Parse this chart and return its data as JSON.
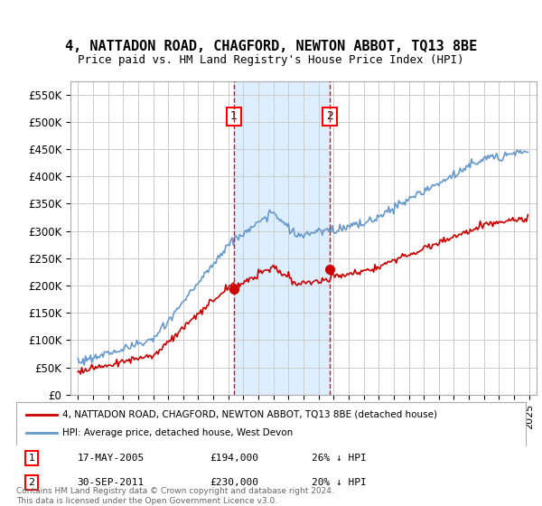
{
  "title": "4, NATTADON ROAD, CHAGFORD, NEWTON ABBOT, TQ13 8BE",
  "subtitle": "Price paid vs. HM Land Registry's House Price Index (HPI)",
  "ylim": [
    0,
    575000
  ],
  "yticks": [
    0,
    50000,
    100000,
    150000,
    200000,
    250000,
    300000,
    350000,
    400000,
    450000,
    500000,
    550000
  ],
  "ytick_labels": [
    "£0",
    "£50K",
    "£100K",
    "£150K",
    "£200K",
    "£250K",
    "£300K",
    "£350K",
    "£400K",
    "£450K",
    "£500K",
    "£550K"
  ],
  "xlim_start": 1994.5,
  "xlim_end": 2025.5,
  "sale1_x": 2005.38,
  "sale1_y": 194000,
  "sale1_label": "1",
  "sale1_date": "17-MAY-2005",
  "sale1_price": "£194,000",
  "sale1_hpi": "26% ↓ HPI",
  "sale2_x": 2011.75,
  "sale2_y": 230000,
  "sale2_label": "2",
  "sale2_date": "30-SEP-2011",
  "sale2_price": "£230,000",
  "sale2_hpi": "20% ↓ HPI",
  "red_line_color": "#cc0000",
  "blue_line_color": "#6699cc",
  "shaded_region_color": "#ddeeff",
  "grid_color": "#cccccc",
  "background_color": "#ffffff",
  "legend_line1": "4, NATTADON ROAD, CHAGFORD, NEWTON ABBOT, TQ13 8BE (detached house)",
  "legend_line2": "HPI: Average price, detached house, West Devon",
  "footnote": "Contains HM Land Registry data © Crown copyright and database right 2024.\nThis data is licensed under the Open Government Licence v3.0."
}
